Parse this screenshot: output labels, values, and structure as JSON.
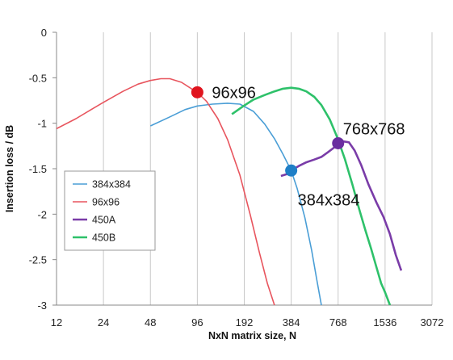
{
  "chart_data": {
    "type": "line",
    "title": "",
    "xlabel": "NxN matrix size, N",
    "ylabel": "Insertion loss / dB",
    "x_scale": "log2",
    "xlim": [
      12,
      3072
    ],
    "ylim": [
      -3,
      0
    ],
    "x_ticks": [
      "12",
      "24",
      "48",
      "96",
      "192",
      "384",
      "768",
      "1536",
      "3072"
    ],
    "y_ticks": [
      "0",
      "-0.5",
      "-1",
      "-1.5",
      "-2",
      "-2.5",
      "-3"
    ],
    "grid": "vertical",
    "legend_position": "left",
    "series": [
      {
        "name": "384x384",
        "color": "#4a9ed6",
        "x": [
          48,
          64,
          80,
          96,
          120,
          150,
          180,
          220,
          260,
          300,
          340,
          384,
          420,
          470,
          520,
          560,
          600
        ],
        "y": [
          -1.03,
          -0.93,
          -0.85,
          -0.81,
          -0.79,
          -0.78,
          -0.79,
          -0.87,
          -1.01,
          -1.17,
          -1.34,
          -1.52,
          -1.72,
          -2.04,
          -2.4,
          -2.72,
          -3.0
        ]
      },
      {
        "name": "96x96",
        "color": "#e8555e",
        "x": [
          12,
          16,
          20,
          24,
          32,
          40,
          48,
          56,
          64,
          76,
          88,
          96,
          110,
          130,
          150,
          180,
          210,
          240,
          270,
          300
        ],
        "y": [
          -1.06,
          -0.95,
          -0.85,
          -0.77,
          -0.65,
          -0.57,
          -0.53,
          -0.51,
          -0.51,
          -0.55,
          -0.62,
          -0.66,
          -0.76,
          -0.95,
          -1.18,
          -1.57,
          -2.01,
          -2.42,
          -2.76,
          -3.0
        ]
      },
      {
        "name": "450A",
        "color": "#7a3ca8",
        "x": [
          330,
          360,
          384,
          430,
          480,
          540,
          600,
          660,
          720,
          768,
          830,
          900,
          980,
          1080,
          1200,
          1350,
          1500,
          1650,
          1800,
          1950
        ],
        "y": [
          -1.58,
          -1.56,
          -1.52,
          -1.47,
          -1.43,
          -1.4,
          -1.37,
          -1.32,
          -1.27,
          -1.22,
          -1.2,
          -1.21,
          -1.3,
          -1.46,
          -1.67,
          -1.87,
          -2.03,
          -2.22,
          -2.45,
          -2.62
        ]
      },
      {
        "name": "450B",
        "color": "#2ec16a",
        "x": [
          160,
          190,
          220,
          260,
          300,
          340,
          384,
          430,
          480,
          540,
          600,
          680,
          760,
          850,
          950,
          1050,
          1150,
          1250,
          1350,
          1450,
          1536,
          1650
        ],
        "y": [
          -0.9,
          -0.81,
          -0.74,
          -0.69,
          -0.65,
          -0.62,
          -0.61,
          -0.62,
          -0.65,
          -0.71,
          -0.8,
          -0.96,
          -1.16,
          -1.4,
          -1.68,
          -1.95,
          -2.18,
          -2.38,
          -2.58,
          -2.76,
          -2.86,
          -3.0
        ]
      }
    ],
    "markers": [
      {
        "label": "96x96",
        "x": 96,
        "y": -0.66,
        "color": "#e0141e"
      },
      {
        "label": "384x384",
        "x": 384,
        "y": -1.52,
        "color": "#1f7fc7"
      },
      {
        "label": "768x768",
        "x": 768,
        "y": -1.22,
        "color": "#6a2ea0"
      }
    ]
  }
}
